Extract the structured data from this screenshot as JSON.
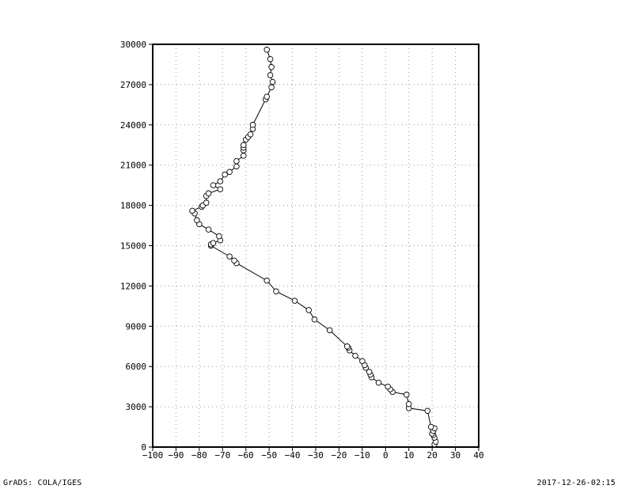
{
  "footer": {
    "left_text": "GrADS: COLA/IGES",
    "right_text": "2017-12-26-02:15"
  },
  "colors": {
    "line": "#000000",
    "marker_fill": "#ffffff",
    "grid": "#9a9a9a",
    "frame": "#000000"
  },
  "chart_data": {
    "type": "line",
    "xlim": [
      -100,
      40
    ],
    "ylim": [
      0,
      30000
    ],
    "xticks": [
      -100,
      -90,
      -80,
      -70,
      -60,
      -50,
      -40,
      -30,
      -20,
      -10,
      0,
      10,
      20,
      30,
      40
    ],
    "yticks": [
      0,
      3000,
      6000,
      9000,
      12000,
      15000,
      18000,
      21000,
      24000,
      27000,
      30000
    ],
    "grid": true,
    "marker": "open-circle",
    "series": [
      {
        "x": [
          21,
          21.5,
          21,
          20.5,
          20,
          20.5,
          21,
          19.5,
          18,
          10,
          10,
          9,
          3,
          2,
          1,
          -3,
          -6,
          -6.5,
          -7,
          -8.5,
          -9,
          -10,
          -13,
          -15.5,
          -16,
          -16.5,
          -24,
          -30.5,
          -33,
          -39,
          -47,
          -51,
          -64,
          -65,
          -67,
          -75,
          -75,
          -74,
          -71,
          -71.5,
          -76,
          -80,
          -81,
          -82,
          -83,
          -79,
          -78.5,
          -77,
          -77,
          -76,
          -71,
          -74,
          -71,
          -69,
          -67,
          -64,
          -64,
          -61,
          -61,
          -61,
          -61,
          -60,
          -59,
          -58,
          -57,
          -57,
          -51.5,
          -51,
          -49,
          -48.5,
          -49.5,
          -49,
          -49.5,
          -51
        ],
        "y": [
          200,
          400,
          700,
          900,
          1000,
          1200,
          1400,
          1500,
          2700,
          2900,
          3200,
          3900,
          4100,
          4300,
          4500,
          4800,
          5200,
          5400,
          5600,
          5900,
          6100,
          6400,
          6800,
          7200,
          7400,
          7500,
          8700,
          9500,
          10200,
          10900,
          11600,
          12400,
          13700,
          13900,
          14200,
          15000,
          15100,
          15200,
          15400,
          15700,
          16200,
          16600,
          16900,
          17400,
          17600,
          17900,
          18000,
          18200,
          18700,
          18900,
          19200,
          19500,
          19800,
          20300,
          20500,
          20900,
          21300,
          21700,
          22100,
          22300,
          22500,
          22900,
          23100,
          23300,
          23700,
          24000,
          25900,
          26100,
          26800,
          27200,
          27700,
          28300,
          28900,
          29600
        ]
      }
    ]
  }
}
